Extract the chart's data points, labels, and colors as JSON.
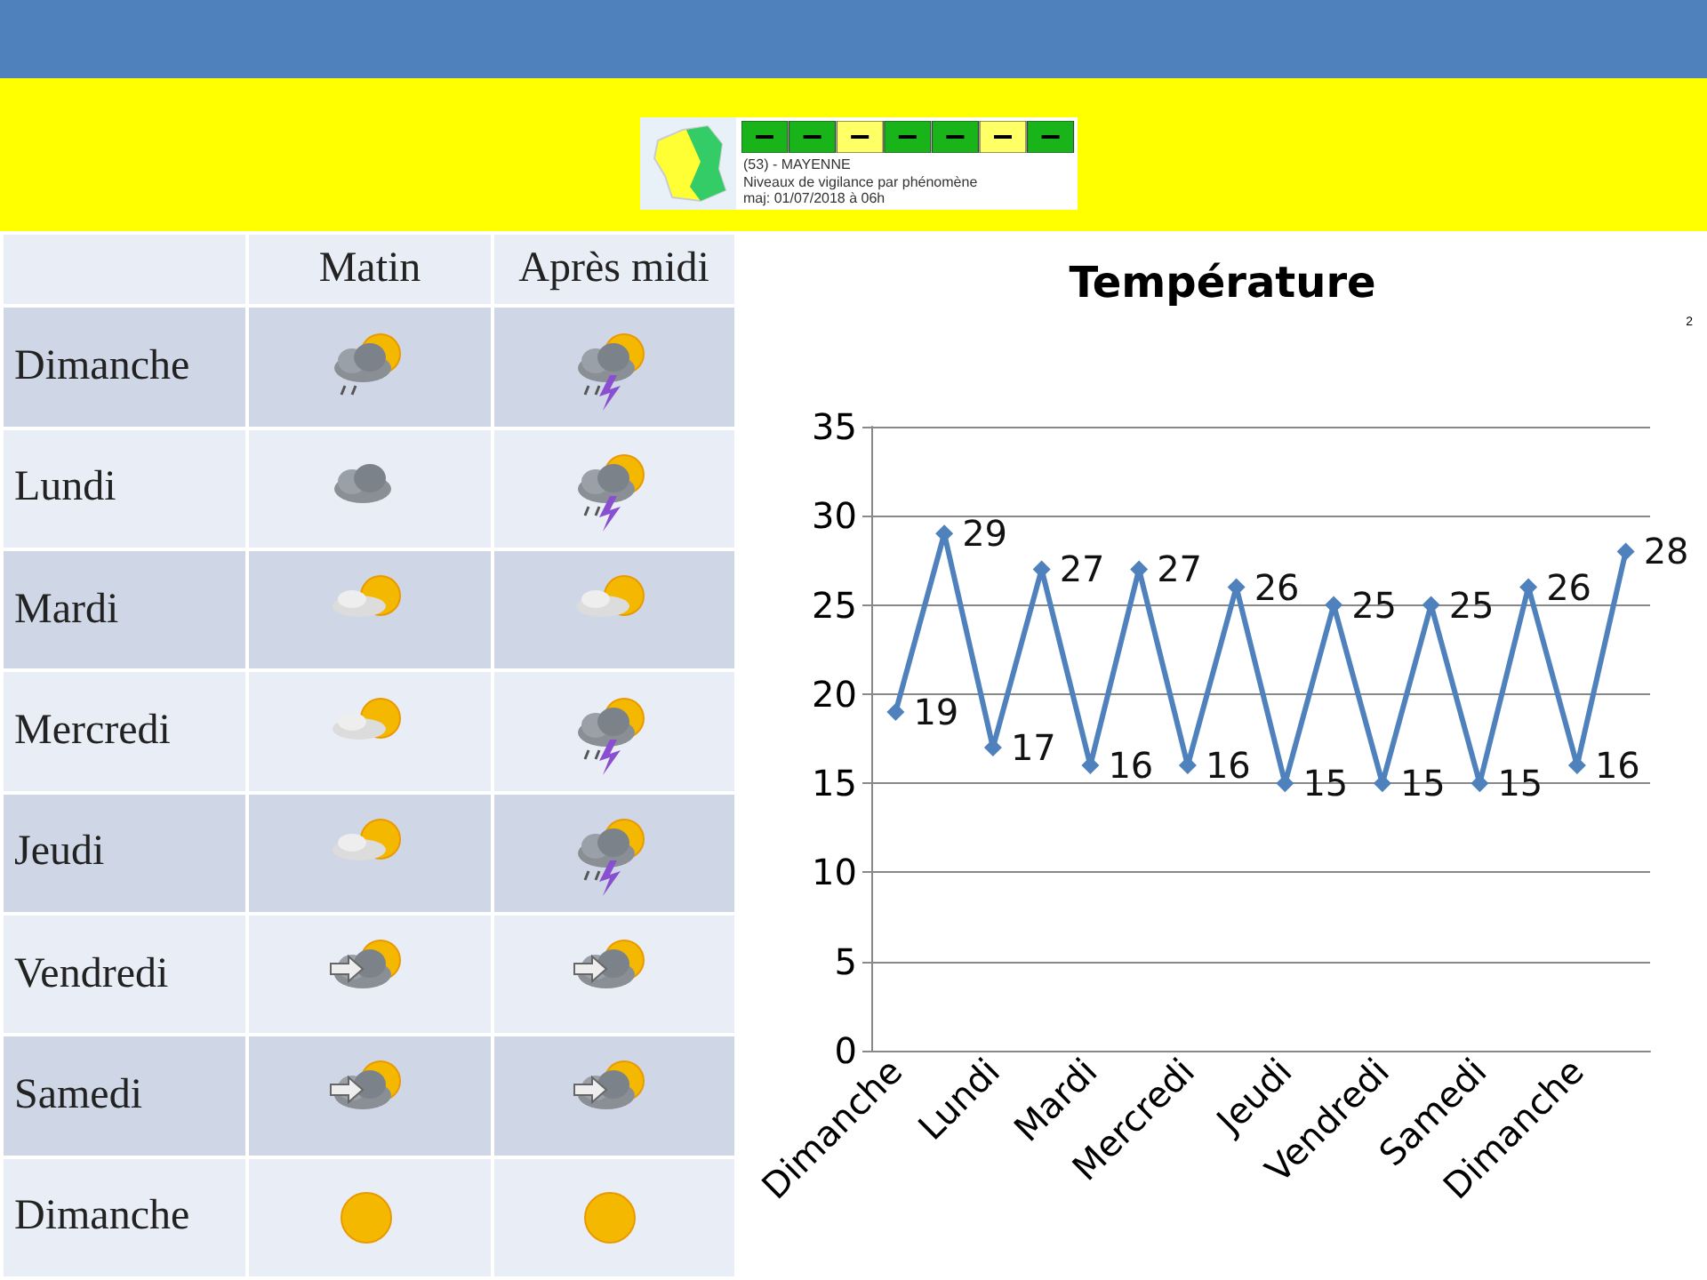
{
  "chart_data": [
    {
      "type": "other",
      "annotations": [
        "(53) - MAYENNE",
        "Niveaux de vigilance par phénomène",
        "maj: 01/07/2018 à 06h"
      ]
    },
    {
      "type": "other",
      "categories": [
        "Matin",
        "Après midi"
      ],
      "y_categories": [
        "Dimanche",
        "Lundi",
        "Mardi",
        "Mercredi",
        "Jeudi",
        "Vendredi",
        "Samedi",
        "Dimanche"
      ]
    },
    {
      "type": "line",
      "title": "Température",
      "categories": [
        "Dimanche",
        null,
        "Lundi",
        null,
        "Mardi",
        null,
        "Mercredi",
        null,
        "Jeudi",
        null,
        "Vendredi",
        null,
        "Samedi",
        null,
        "Dimanche",
        null
      ],
      "series": [
        {
          "color": "#4f81bd",
          "values": [
            19,
            29,
            17,
            27,
            16,
            27,
            16,
            26,
            15,
            25,
            15,
            25,
            15,
            26,
            16,
            28
          ]
        }
      ],
      "ylim": [
        0,
        35
      ],
      "yticks": [
        0,
        5,
        10,
        15,
        20,
        25,
        30,
        35
      ],
      "grid": "y",
      "marker": "diamond",
      "line_style": "solid",
      "data_labels": true,
      "annotations": [
        "2"
      ]
    }
  ]
}
